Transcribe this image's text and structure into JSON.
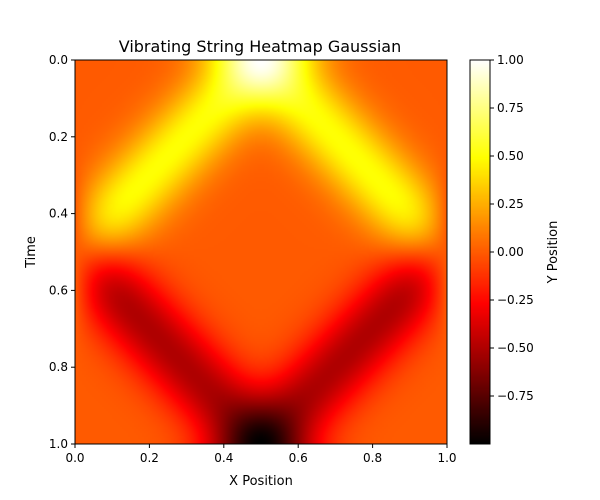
{
  "chart_data": {
    "type": "heatmap",
    "title": "Vibrating String Heatmap Gaussian",
    "xlabel": "X Position",
    "ylabel": "Time",
    "colorbar_label": "Y Position",
    "colormap": "hot",
    "xlim": [
      0.0,
      1.0
    ],
    "ylim": [
      1.0,
      0.0
    ],
    "x_ticks": [
      "0.0",
      "0.2",
      "0.4",
      "0.6",
      "0.8",
      "1.0"
    ],
    "y_ticks": [
      "0.0",
      "0.2",
      "0.4",
      "0.6",
      "0.8",
      "1.0"
    ],
    "colorbar_range": [
      -1.0,
      1.0
    ],
    "colorbar_ticks": [
      "1.00",
      "0.75",
      "0.50",
      "0.25",
      "0.00",
      "−0.25",
      "−0.50",
      "−0.75"
    ],
    "field": {
      "description_of_values": "String displacement y(x,t): Gaussian pulse centred at x=0.5 splitting into two travelling waves reflecting (inverted) at fixed ends",
      "pulse_center": 0.5,
      "pulse_width": 0.1,
      "peak_value_t0": 1.0,
      "min_value_t1": -1.0
    }
  }
}
